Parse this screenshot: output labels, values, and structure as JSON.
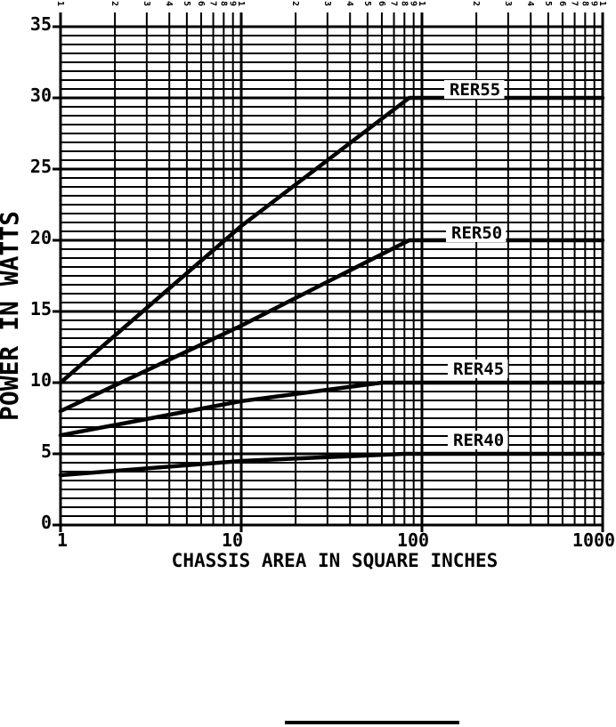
{
  "chart_data": {
    "type": "line",
    "title": "",
    "xlabel": "CHASSIS AREA IN SQUARE INCHES",
    "ylabel": "POWER IN WATTS",
    "x_scale": "log",
    "xlim": [
      1,
      1000
    ],
    "ylim": [
      0,
      35
    ],
    "grid": true,
    "legend_position": "inline-labels",
    "colors": {
      "foreground": "#000000",
      "background": "#ffffff"
    },
    "x_ticks": [
      {
        "value": 1,
        "label": "1"
      },
      {
        "value": 10,
        "label": "10"
      },
      {
        "value": 100,
        "label": "100"
      },
      {
        "value": 1000,
        "label": "1000"
      }
    ],
    "y_ticks": [
      {
        "value": 0,
        "label": "0"
      },
      {
        "value": 5,
        "label": "5"
      },
      {
        "value": 10,
        "label": "10"
      },
      {
        "value": 15,
        "label": "15"
      },
      {
        "value": 20,
        "label": "20"
      },
      {
        "value": 25,
        "label": "25"
      },
      {
        "value": 30,
        "label": "30"
      },
      {
        "value": 35,
        "label": "35"
      }
    ],
    "y_minor_divisions_per_major": 8,
    "x_minor_mantissas": [
      2,
      3,
      4,
      5,
      6,
      7,
      8,
      9
    ],
    "top_mantissa_labels": [
      "1",
      "2",
      "3",
      "4",
      "5",
      "6",
      "7",
      "8",
      "9"
    ],
    "series": [
      {
        "name": "RER55",
        "points": [
          [
            1,
            10
          ],
          [
            10,
            21
          ],
          [
            85,
            30
          ],
          [
            1000,
            30
          ]
        ],
        "label_at": [
          505,
          107
        ]
      },
      {
        "name": "RER50",
        "points": [
          [
            1,
            8
          ],
          [
            10,
            14
          ],
          [
            85,
            20
          ],
          [
            1000,
            20
          ]
        ],
        "label_at": [
          507,
          268
        ]
      },
      {
        "name": "RER45",
        "points": [
          [
            1,
            6.3
          ],
          [
            10,
            8.7
          ],
          [
            60,
            10
          ],
          [
            1000,
            10
          ]
        ],
        "label_at": [
          509,
          421
        ]
      },
      {
        "name": "RER40",
        "points": [
          [
            1,
            3.5
          ],
          [
            10,
            4.5
          ],
          [
            80,
            5
          ],
          [
            1000,
            5
          ]
        ],
        "label_at": [
          509,
          501
        ]
      }
    ]
  }
}
